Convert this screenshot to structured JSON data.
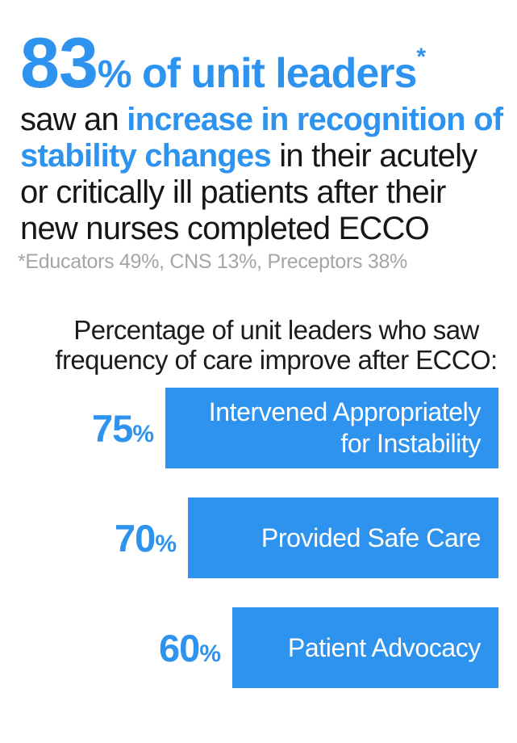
{
  "headline": {
    "stat": "83",
    "stat_percent": "%",
    "rest": " of unit leaders",
    "asterisk": "*"
  },
  "intro": {
    "prefix": "saw an ",
    "highlight": "increase in recognition of stability changes",
    "suffix": " in their acutely or critically ill patients after their new nurses completed ECCO"
  },
  "footnote": "*Educators 49%, CNS 13%, Preceptors 38%",
  "chart_data": {
    "type": "bar",
    "orientation": "horizontal-right-anchored",
    "title": "Percentage of unit leaders who saw frequency of care improve after ECCO:",
    "categories": [
      "Intervened Appropriately for Instability",
      "Provided Safe Care",
      "Patient Advocacy"
    ],
    "values": [
      75,
      70,
      60
    ],
    "value_unit": "%",
    "xlim": [
      0,
      100
    ],
    "grid": false,
    "legend": false,
    "bar_color": "#2E93EF",
    "value_label_color": "#2E93EF",
    "bar_text_color": "#FFFFFF"
  },
  "colors": {
    "accent_blue": "#2E93EF",
    "body_text": "#161616",
    "footnote_gray": "#A5A5A5",
    "background": "#FFFFFF"
  }
}
